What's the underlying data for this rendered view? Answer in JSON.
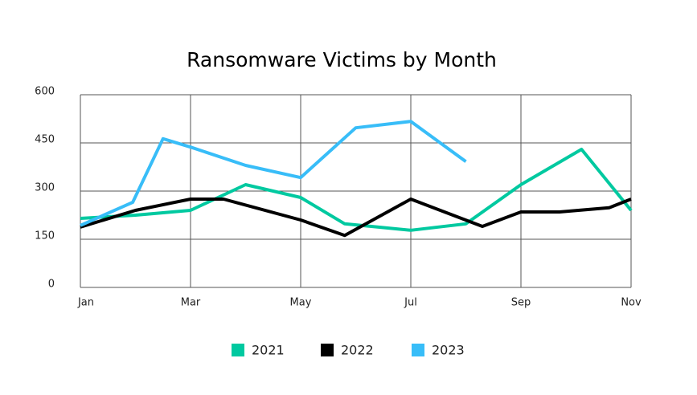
{
  "chart_data": {
    "type": "line",
    "title": "Ransomware Victims by Month",
    "xlim": [
      0,
      10
    ],
    "xticks": [
      {
        "value": 0,
        "label": "Jan"
      },
      {
        "value": 2,
        "label": "Mar"
      },
      {
        "value": 4,
        "label": "May"
      },
      {
        "value": 6,
        "label": "Jul"
      },
      {
        "value": 8,
        "label": "Sep"
      },
      {
        "value": 10,
        "label": "Nov"
      }
    ],
    "ylim": [
      0,
      600
    ],
    "yticks": [
      0,
      150,
      300,
      450,
      600
    ],
    "grid": true,
    "series": [
      {
        "name": "2021",
        "color": "#00c9a0",
        "x": [
          0,
          1,
          2,
          3,
          4,
          4.8,
          6,
          7,
          8,
          9.1,
          10
        ],
        "values": [
          215,
          225,
          240,
          320,
          280,
          198,
          178,
          198,
          320,
          430,
          240
        ]
      },
      {
        "name": "2022",
        "color": "#000000",
        "x": [
          0,
          1,
          2,
          2.6,
          4,
          4.8,
          6,
          7.3,
          8,
          8.7,
          9.6,
          10
        ],
        "values": [
          188,
          240,
          275,
          275,
          210,
          162,
          275,
          190,
          235,
          235,
          248,
          275
        ]
      },
      {
        "name": "2023",
        "color": "#38bdf8",
        "x": [
          0,
          0.95,
          1.5,
          2,
          3,
          4,
          5,
          6,
          7
        ],
        "values": [
          193,
          265,
          463,
          437,
          380,
          342,
          497,
          517,
          392
        ]
      }
    ]
  }
}
